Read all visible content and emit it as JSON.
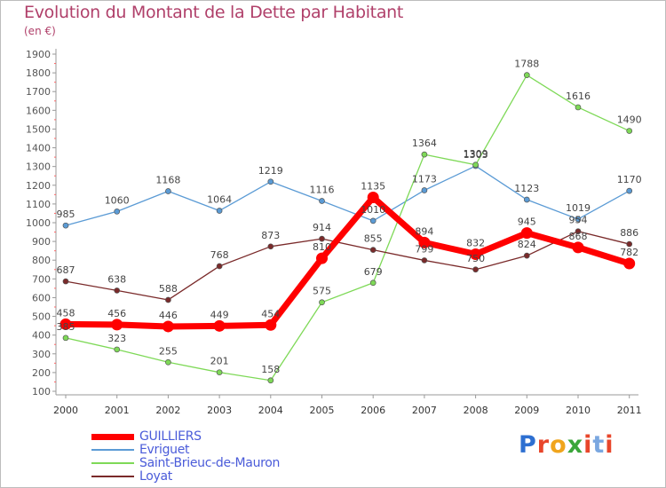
{
  "header": {
    "title": "Evolution du Montant de la Dette par Habitant",
    "subtitle": "(en €)"
  },
  "brand": {
    "text": "Proxiti",
    "colors": [
      "#2d6fd1",
      "#e8462b",
      "#f0a51d",
      "#3aa63a",
      "#e8462b",
      "#7aa7e0",
      "#e8462b"
    ]
  },
  "chart_data": {
    "type": "line",
    "title": "Evolution du Montant de la Dette par Habitant",
    "ylabel": "(en €)",
    "xlabel": "",
    "categories": [
      "2000",
      "2001",
      "2002",
      "2003",
      "2004",
      "2005",
      "2006",
      "2007",
      "2008",
      "2009",
      "2010",
      "2011"
    ],
    "ylim": [
      100,
      1900
    ],
    "yticks": [
      100,
      200,
      300,
      400,
      500,
      600,
      700,
      800,
      900,
      1000,
      1100,
      1200,
      1300,
      1400,
      1500,
      1600,
      1700,
      1800,
      1900
    ],
    "grid": false,
    "legend_position": "bottom-left",
    "series": [
      {
        "name": "GUILLIERS",
        "color": "#ff0000",
        "values": [
          458,
          456,
          446,
          449,
          454,
          810,
          1135,
          894,
          832,
          945,
          868,
          782
        ],
        "labels": [
          "458",
          "456",
          "446",
          "449",
          "454",
          "810",
          "1135",
          "894",
          "832",
          "945",
          "868",
          "782"
        ]
      },
      {
        "name": "Evriguet",
        "color": "#5b9bd5",
        "values": [
          985,
          1060,
          1168,
          1064,
          1219,
          1116,
          1010,
          1173,
          1303,
          1123,
          1019,
          1170
        ],
        "labels": [
          "985",
          "1060",
          "1168",
          "1064",
          "1219",
          "1116",
          "1010",
          "1173",
          "1303",
          "1123",
          "1019",
          "1170"
        ]
      },
      {
        "name": "Saint-Brieuc-de-Mauron",
        "color": "#7ed957",
        "values": [
          385,
          323,
          255,
          201,
          158,
          575,
          679,
          1364,
          1309,
          1788,
          1616,
          1490
        ],
        "labels": [
          "385",
          "323",
          "255",
          "201",
          "158",
          "575",
          "679",
          "1364",
          "1309",
          "1788",
          "1616",
          "1490"
        ]
      },
      {
        "name": "Loyat",
        "color": "#7a2a2a",
        "values": [
          687,
          638,
          588,
          768,
          873,
          914,
          855,
          799,
          750,
          824,
          954,
          886
        ],
        "labels": [
          "687",
          "638",
          "588",
          "768",
          "873",
          "914",
          "855",
          "799",
          "750",
          "824",
          "954",
          "886"
        ]
      }
    ]
  }
}
